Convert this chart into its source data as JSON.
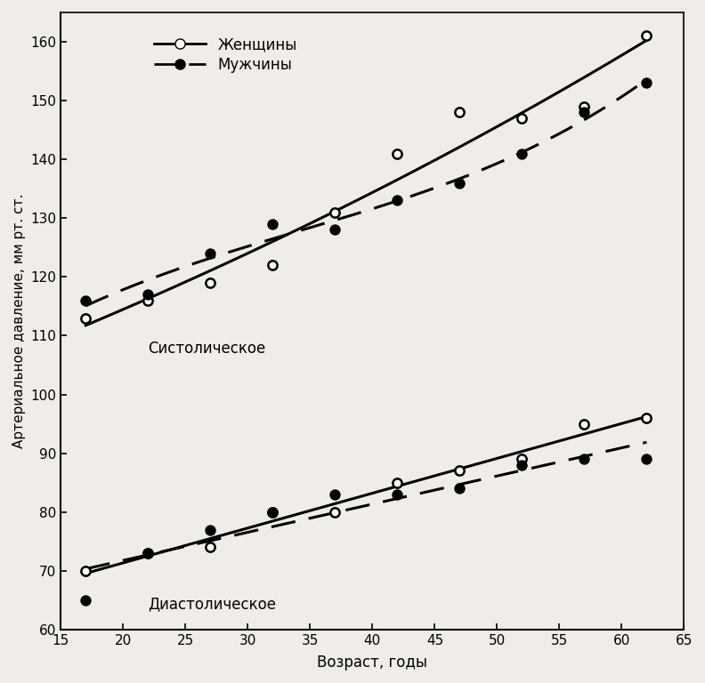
{
  "title": "",
  "xlabel": "Возраст, годы",
  "ylabel": "Артериальное давление, мм рт. ст.",
  "xlim": [
    15,
    65
  ],
  "ylim": [
    60,
    165
  ],
  "xticks": [
    15,
    20,
    25,
    30,
    35,
    40,
    45,
    50,
    55,
    60,
    65
  ],
  "yticks": [
    60,
    70,
    80,
    90,
    100,
    110,
    120,
    130,
    140,
    150,
    160
  ],
  "systolic_women_x": [
    17,
    22,
    27,
    32,
    37,
    42,
    47,
    52,
    57,
    62
  ],
  "systolic_women_y": [
    113,
    116,
    119,
    122,
    131,
    141,
    148,
    147,
    149,
    161
  ],
  "systolic_men_x": [
    17,
    22,
    27,
    32,
    37,
    42,
    47,
    52,
    57,
    62
  ],
  "systolic_men_y": [
    116,
    117,
    124,
    129,
    128,
    133,
    136,
    141,
    148,
    153
  ],
  "diastolic_women_x": [
    17,
    22,
    27,
    32,
    37,
    42,
    47,
    52,
    57,
    62
  ],
  "diastolic_women_y": [
    70,
    73,
    74,
    80,
    80,
    85,
    87,
    89,
    95,
    96
  ],
  "diastolic_men_x": [
    17,
    22,
    27,
    32,
    37,
    42,
    47,
    52,
    57,
    62
  ],
  "diastolic_men_y": [
    65,
    73,
    77,
    80,
    83,
    83,
    84,
    88,
    89,
    89
  ],
  "systolic_women_curve_x": [
    17,
    22,
    27,
    32,
    37,
    42,
    44,
    47,
    52,
    57,
    62
  ],
  "systolic_women_curve_y": [
    112,
    114,
    115,
    118,
    125,
    135,
    140,
    152,
    158,
    163,
    163
  ],
  "systolic_men_curve_x": [
    17,
    22,
    27,
    32,
    37,
    42,
    47,
    52,
    57,
    62
  ],
  "systolic_men_curve_y": [
    115,
    118,
    123,
    127,
    130,
    133,
    137,
    142,
    148,
    153
  ],
  "diastolic_women_curve_x": [
    17,
    22,
    27,
    32,
    37,
    42,
    47,
    52,
    57,
    62
  ],
  "diastolic_women_curve_y": [
    67,
    70,
    73,
    77,
    80,
    83,
    86,
    89,
    93,
    96
  ],
  "diastolic_men_curve_x": [
    17,
    22,
    27,
    32,
    37,
    42,
    47,
    52,
    57,
    62
  ],
  "diastolic_men_curve_y": [
    68,
    71,
    74,
    78,
    80,
    82,
    84,
    87,
    89,
    91
  ],
  "label_women": "Женщины",
  "label_men": "Мужчины",
  "label_systolic": "Систолическое",
  "label_diastolic": "Диастолическое",
  "bg_color": "#f0ede8",
  "line_color": "#000000"
}
